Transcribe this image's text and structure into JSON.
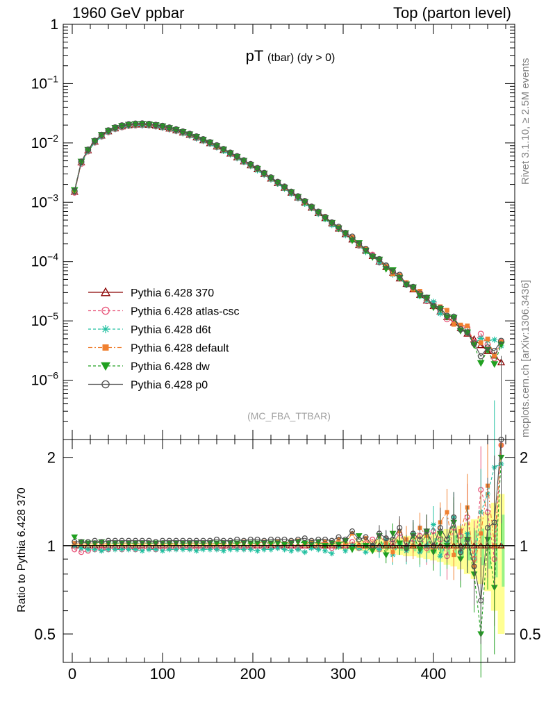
{
  "header": {
    "left": "1960 GeV ppbar",
    "right": "Top (parton level)"
  },
  "side_labels": {
    "rivet": "Rivet 3.1.10, ≥ 2.5M events",
    "mcplots": "mcplots.cern.ch [arXiv:1306.3436]"
  },
  "chart_data": [
    {
      "type": "line",
      "title": "pT",
      "title_sub": "(tbar) (dy > 0)",
      "annotation": "(MC_FBA_TTBAR)",
      "ylog": true,
      "ylim": [
        1e-07,
        1
      ],
      "xlim": [
        -10,
        490
      ],
      "y_tick_labels": [
        "1",
        "10^-1",
        "10^-2",
        "10^-3",
        "10^-4",
        "10^-5",
        "10^-6"
      ],
      "legend_placement": "bottom-left",
      "reference_shape": {
        "x": [
          2.5,
          10,
          17.5,
          25,
          32.5,
          40,
          47.5,
          55,
          62.5,
          70,
          77.5,
          85,
          92.5,
          100,
          107.5,
          115,
          122.5,
          130,
          137.5,
          145,
          152.5,
          160,
          167.5,
          175,
          182.5,
          190,
          197.5,
          205,
          212.5,
          220,
          227.5,
          235,
          242.5,
          250,
          257.5,
          265,
          272.5,
          280,
          287.5,
          295,
          302.5,
          310,
          317.5,
          325,
          332.5,
          340,
          347.5,
          355,
          362.5,
          370,
          377.5,
          385,
          392.5,
          400,
          407.5,
          415,
          422.5,
          430,
          437.5,
          445,
          452.5,
          460,
          467.5,
          475
        ],
        "y": [
          0.0015,
          0.0047,
          0.0075,
          0.0105,
          0.0133,
          0.0157,
          0.0176,
          0.019,
          0.0199,
          0.0204,
          0.0205,
          0.0202,
          0.0196,
          0.0187,
          0.0175,
          0.0163,
          0.015,
          0.0137,
          0.0124,
          0.0111,
          0.0099,
          0.0087,
          0.0076,
          0.0066,
          0.0057,
          0.0049,
          0.0042,
          0.0036,
          0.003,
          0.0025,
          0.0021,
          0.00175,
          0.00145,
          0.0012,
          0.00099,
          0.00081,
          0.00066,
          0.00054,
          0.00044,
          0.00036,
          0.00029,
          0.000235,
          0.00019,
          0.000153,
          0.000124,
          0.0001,
          8.1e-05,
          6.5e-05,
          5.2e-05,
          4.2e-05,
          3.4e-05,
          2.75e-05,
          2.2e-05,
          1.78e-05,
          1.44e-05,
          1.16e-05,
          9.4e-06,
          7.6e-06,
          6.1e-06,
          4.9e-06,
          3.9e-06,
          3.1e-06,
          2.6e-06,
          2e-06
        ]
      },
      "series": [
        {
          "name": "Pythia 6.428 370",
          "color": "#8b0000",
          "marker": "triangle-up-open",
          "style": "solid",
          "ratio": [
            1,
            1,
            1,
            1,
            1,
            1,
            1,
            1,
            1,
            1,
            1,
            1,
            1,
            1,
            1,
            1,
            1,
            1,
            1,
            1,
            1,
            1,
            1,
            1,
            1,
            1,
            1,
            1,
            1,
            1,
            1,
            1,
            1,
            1,
            1,
            1,
            1,
            1,
            1,
            1,
            1,
            1,
            1,
            1,
            1,
            1,
            1,
            1,
            1,
            1,
            1,
            1,
            1,
            1,
            1,
            1,
            1,
            1,
            1,
            1,
            1,
            1,
            1,
            1
          ]
        },
        {
          "name": "Pythia 6.428 atlas-csc",
          "color": "#e8557a",
          "marker": "circle-open",
          "style": "dashed",
          "ratio": [
            0.97,
            0.95,
            0.96,
            0.97,
            0.97,
            0.97,
            0.98,
            0.97,
            0.98,
            0.97,
            0.98,
            0.98,
            0.97,
            0.98,
            0.98,
            0.98,
            0.99,
            0.98,
            0.98,
            0.99,
            0.99,
            0.98,
            0.99,
            0.99,
            0.99,
            0.98,
            0.99,
            1.0,
            0.99,
            1.0,
            0.99,
            1.0,
            1.0,
            0.98,
            1.0,
            1.01,
            0.99,
            1.02,
            0.98,
            1.01,
            1.0,
            1.03,
            0.98,
            1.02,
            1.05,
            0.97,
            1.05,
            1.02,
            1.1,
            0.99,
            1.05,
            1.08,
            0.98,
            1.12,
            1.05,
            0.92,
            1.15,
            1.08,
            1.25,
            0.9,
            1.55,
            1.3,
            0.9,
            2.2
          ]
        },
        {
          "name": "Pythia 6.428 d6t",
          "color": "#20c0a0",
          "marker": "star",
          "style": "dashed",
          "ratio": [
            1.0,
            0.98,
            0.97,
            0.97,
            0.96,
            0.97,
            0.97,
            0.97,
            0.97,
            0.97,
            0.96,
            0.97,
            0.97,
            0.96,
            0.97,
            0.97,
            0.97,
            0.97,
            0.96,
            0.97,
            0.97,
            0.97,
            0.96,
            0.97,
            0.97,
            0.97,
            0.97,
            0.96,
            0.97,
            0.97,
            0.98,
            0.97,
            0.96,
            0.97,
            0.95,
            0.98,
            0.97,
            0.96,
            0.94,
            0.99,
            0.96,
            1.0,
            0.98,
            0.95,
            1.0,
            0.97,
            1.05,
            0.93,
            1.02,
            0.96,
            1.1,
            0.95,
            1.0,
            1.18,
            0.92,
            1.02,
            1.25,
            0.95,
            1.1,
            0.85,
            1.3,
            1.5,
            1.85,
            1.9
          ]
        },
        {
          "name": "Pythia 6.428 default",
          "color": "#f08030",
          "marker": "square",
          "style": "dashdot",
          "ratio": [
            1.02,
            1.01,
            1.02,
            1.02,
            1.01,
            1.02,
            1.02,
            1.02,
            1.02,
            1.01,
            1.02,
            1.02,
            1.02,
            1.02,
            1.01,
            1.02,
            1.02,
            1.02,
            1.02,
            1.02,
            1.02,
            1.01,
            1.02,
            1.02,
            1.02,
            1.03,
            1.02,
            1.02,
            1.03,
            1.02,
            1.03,
            1.02,
            1.03,
            1.04,
            1.02,
            1.03,
            1.02,
            1.03,
            1.01,
            1.05,
            1.02,
            1.1,
            1.0,
            1.06,
            0.98,
            1.08,
            1.02,
            0.95,
            1.12,
            1.05,
            1.0,
            1.15,
            1.08,
            0.97,
            1.2,
            1.3,
            0.93,
            1.12,
            1.35,
            0.85,
            1.1,
            1.6,
            1.0,
            2.2
          ]
        },
        {
          "name": "Pythia 6.428 dw",
          "color": "#20a020",
          "marker": "triangle-down",
          "style": "dashed",
          "ratio": [
            1.07,
            1.03,
            1.02,
            1.02,
            1.03,
            1.02,
            1.02,
            1.02,
            1.02,
            1.02,
            1.02,
            1.02,
            1.02,
            1.02,
            1.02,
            1.02,
            1.02,
            1.02,
            1.02,
            1.02,
            1.02,
            1.02,
            1.02,
            1.02,
            1.02,
            1.02,
            1.02,
            1.02,
            1.02,
            1.02,
            1.02,
            1.01,
            1.02,
            1.03,
            1.02,
            1.01,
            1.03,
            1.0,
            1.02,
            1.01,
            1.04,
            0.97,
            1.08,
            1.0,
            0.96,
            1.08,
            0.93,
            1.1,
            1.02,
            0.98,
            1.08,
            0.97,
            1.12,
            0.95,
            1.1,
            1.0,
            1.2,
            0.9,
            1.05,
            0.8,
            0.5,
            1.05,
            0.72,
            2.0
          ]
        },
        {
          "name": "Pythia 6.428 p0",
          "color": "#505050",
          "marker": "circle-open",
          "style": "solid",
          "ratio": [
            1.03,
            1.03,
            1.03,
            1.04,
            1.03,
            1.04,
            1.04,
            1.04,
            1.04,
            1.04,
            1.04,
            1.04,
            1.03,
            1.04,
            1.04,
            1.04,
            1.04,
            1.04,
            1.04,
            1.04,
            1.04,
            1.05,
            1.04,
            1.04,
            1.05,
            1.04,
            1.05,
            1.05,
            1.04,
            1.05,
            1.05,
            1.05,
            1.04,
            1.05,
            1.06,
            1.04,
            1.05,
            1.05,
            1.04,
            1.07,
            1.05,
            1.12,
            1.05,
            1.07,
            1.0,
            1.1,
            1.06,
            1.05,
            1.15,
            0.98,
            1.1,
            1.05,
            1.12,
            1.0,
            1.15,
            1.05,
            1.25,
            0.95,
            1.05,
            0.85,
            0.65,
            1.15,
            1.2,
            2.3
          ]
        }
      ]
    },
    {
      "type": "line",
      "ylabel": "Ratio to Pythia 6.428 370",
      "ylog": true,
      "ylim": [
        0.4,
        2.3
      ],
      "y_ticks": [
        0.5,
        1,
        2
      ],
      "y_tick_labels": [
        "0.5",
        "1",
        "2"
      ],
      "xlim": [
        -10,
        490
      ],
      "x_ticks": [
        0,
        100,
        200,
        300,
        400
      ],
      "x_tick_labels": [
        "0",
        "100",
        "200",
        "300",
        "400"
      ],
      "x_minor_step": 20,
      "reference_band_colors": [
        "#ffff80",
        "#80f080"
      ],
      "reference_band_halfwidth": [
        0.01,
        0.01,
        0.01,
        0.01,
        0.01,
        0.01,
        0.01,
        0.01,
        0.01,
        0.01,
        0.01,
        0.01,
        0.01,
        0.01,
        0.01,
        0.01,
        0.01,
        0.01,
        0.01,
        0.01,
        0.01,
        0.01,
        0.01,
        0.01,
        0.01,
        0.01,
        0.01,
        0.01,
        0.01,
        0.01,
        0.01,
        0.01,
        0.01,
        0.01,
        0.015,
        0.015,
        0.02,
        0.02,
        0.02,
        0.03,
        0.03,
        0.03,
        0.04,
        0.04,
        0.05,
        0.05,
        0.05,
        0.06,
        0.07,
        0.08,
        0.08,
        0.09,
        0.1,
        0.11,
        0.12,
        0.14,
        0.15,
        0.17,
        0.2,
        0.23,
        0.26,
        0.3,
        0.4,
        0.5
      ]
    }
  ]
}
